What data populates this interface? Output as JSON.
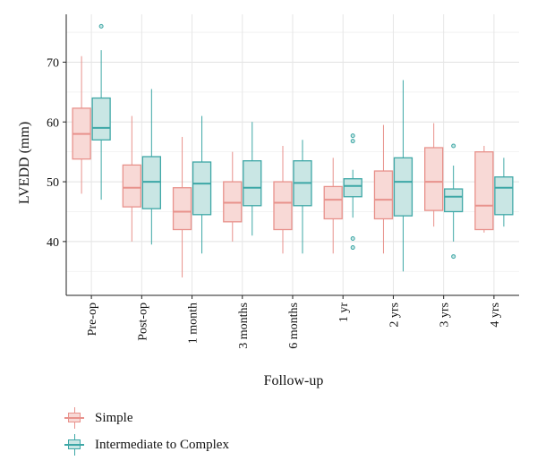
{
  "chart_data": {
    "type": "boxplot",
    "xlabel": "Follow-up",
    "ylabel": "LVEDD (mm)",
    "ylim": [
      31,
      78
    ],
    "yticks": [
      40,
      50,
      60,
      70
    ],
    "categories": [
      "Pre-op",
      "Post-op",
      "1 month",
      "3 months",
      "6 months",
      "1 yr",
      "2 yrs",
      "3 yrs",
      "4 yrs"
    ],
    "grid": true,
    "legend_position": "bottom-left",
    "series": [
      {
        "name": "Simple",
        "color": "#E8928C",
        "fill": "#F8D9D6",
        "boxes": [
          {
            "min": 48,
            "q1": 53.8,
            "median": 58,
            "q3": 62.3,
            "max": 71,
            "outliers": []
          },
          {
            "min": 40,
            "q1": 45.8,
            "median": 49,
            "q3": 52.8,
            "max": 61,
            "outliers": []
          },
          {
            "min": 34,
            "q1": 42,
            "median": 45,
            "q3": 49,
            "max": 57.5,
            "outliers": []
          },
          {
            "min": 40,
            "q1": 43.3,
            "median": 46.5,
            "q3": 50,
            "max": 55,
            "outliers": []
          },
          {
            "min": 38,
            "q1": 42,
            "median": 46.5,
            "q3": 50,
            "max": 56,
            "outliers": []
          },
          {
            "min": 38,
            "q1": 43.8,
            "median": 47,
            "q3": 49.2,
            "max": 54,
            "outliers": []
          },
          {
            "min": 38,
            "q1": 43.8,
            "median": 47,
            "q3": 51.8,
            "max": 59.5,
            "outliers": []
          },
          {
            "min": 42.5,
            "q1": 45.2,
            "median": 50,
            "q3": 55.7,
            "max": 59.8,
            "outliers": []
          },
          {
            "min": 41.5,
            "q1": 42,
            "median": 46,
            "q3": 55,
            "max": 56,
            "outliers": []
          }
        ]
      },
      {
        "name": "Intermediate to Complex",
        "color": "#3DA7A6",
        "fill": "#C9E6E4",
        "boxes": [
          {
            "min": 47,
            "q1": 57,
            "median": 59,
            "q3": 64,
            "max": 72,
            "outliers": [
              76
            ]
          },
          {
            "min": 39.5,
            "q1": 45.5,
            "median": 50,
            "q3": 54.2,
            "max": 65.5,
            "outliers": []
          },
          {
            "min": 38,
            "q1": 44.5,
            "median": 49.7,
            "q3": 53.3,
            "max": 61,
            "outliers": []
          },
          {
            "min": 41,
            "q1": 46,
            "median": 49,
            "q3": 53.5,
            "max": 60,
            "outliers": []
          },
          {
            "min": 38,
            "q1": 46,
            "median": 49.8,
            "q3": 53.5,
            "max": 57,
            "outliers": []
          },
          {
            "min": 44,
            "q1": 47.5,
            "median": 49.3,
            "q3": 50.5,
            "max": 52,
            "outliers": [
              57.7,
              56.8,
              40.5,
              39
            ]
          },
          {
            "min": 35,
            "q1": 44.3,
            "median": 50,
            "q3": 54,
            "max": 67,
            "outliers": []
          },
          {
            "min": 40,
            "q1": 45,
            "median": 47.5,
            "q3": 48.8,
            "max": 52.7,
            "outliers": [
              56,
              37.5
            ]
          },
          {
            "min": 42.5,
            "q1": 44.5,
            "median": 49,
            "q3": 50.8,
            "max": 54,
            "outliers": []
          }
        ]
      }
    ]
  }
}
